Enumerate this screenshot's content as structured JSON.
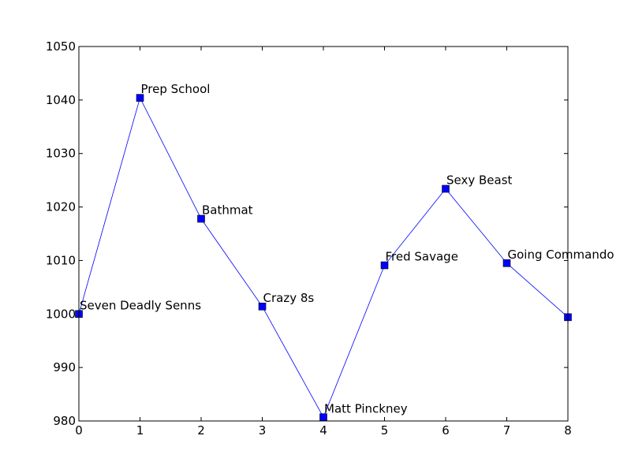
{
  "chart_data": {
    "type": "line",
    "title": "",
    "xlabel": "",
    "ylabel": "",
    "xlim": [
      0,
      8
    ],
    "ylim": [
      980,
      1050
    ],
    "x_ticks": [
      0,
      1,
      2,
      3,
      4,
      5,
      6,
      7,
      8
    ],
    "y_ticks": [
      980,
      990,
      1000,
      1010,
      1020,
      1030,
      1040,
      1050
    ],
    "grid": false,
    "legend": "none",
    "series": [
      {
        "color": "#0000ff",
        "marker": "square",
        "points": [
          {
            "x": 0,
            "y": 1000.0,
            "label": "Seven Deadly Senns"
          },
          {
            "x": 1,
            "y": 1040.4,
            "label": "Prep School"
          },
          {
            "x": 2,
            "y": 1017.8,
            "label": "Bathmat"
          },
          {
            "x": 3,
            "y": 1001.4,
            "label": "Crazy 8s"
          },
          {
            "x": 4,
            "y": 980.7,
            "label": "Matt Pinckney"
          },
          {
            "x": 5,
            "y": 1009.1,
            "label": "Fred Savage"
          },
          {
            "x": 6,
            "y": 1023.4,
            "label": "Sexy Beast"
          },
          {
            "x": 7,
            "y": 1009.5,
            "label": "Going Commando"
          },
          {
            "x": 8,
            "y": 999.4,
            "label": ""
          }
        ]
      }
    ]
  }
}
